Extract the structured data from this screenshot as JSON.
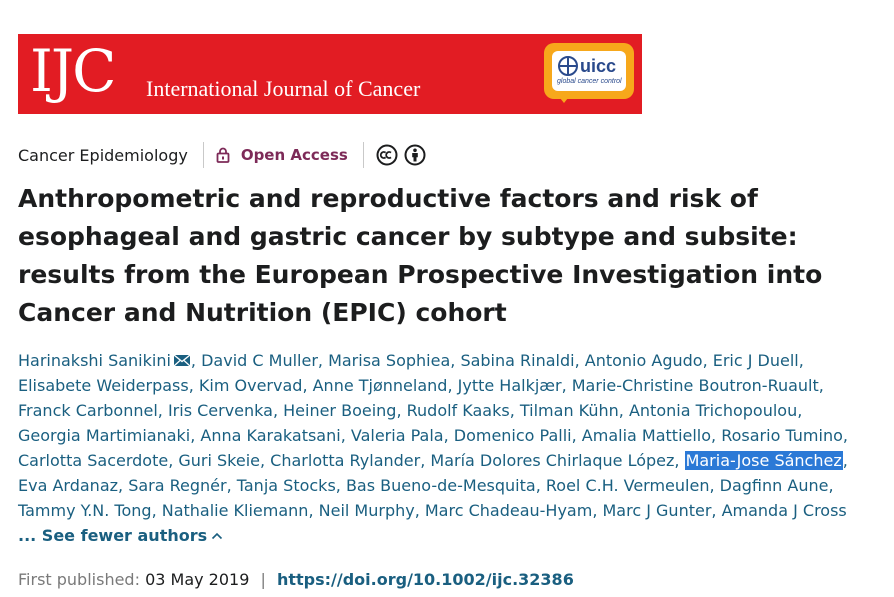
{
  "journal": {
    "logo_text": "IJC",
    "name": "International Journal of Cancer",
    "partner_logo": {
      "name": "uicc",
      "tagline": "global cancer control"
    },
    "colors": {
      "banner": "#e21c23",
      "badge": "#f7a81b"
    }
  },
  "meta": {
    "section": "Cancer Epidemiology",
    "access_icon": "lock-icon",
    "access_label": "Open Access",
    "license_icons": [
      "cc-icon",
      "cc-by-icon"
    ]
  },
  "article": {
    "title": "Anthropometric and reproductive factors and risk of esophageal and gastric cancer by subtype and subsite: results from the European Prospective Investigation into Cancer and Nutrition (EPIC) cohort"
  },
  "authors": [
    "Harinakshi Sanikini",
    "David C Muller",
    "Marisa Sophiea",
    "Sabina Rinaldi",
    "Antonio Agudo",
    "Eric J Duell",
    "Elisabete Weiderpass",
    "Kim Overvad",
    "Anne Tjønneland",
    "Jytte Halkjær",
    "Marie-Christine Boutron-Ruault",
    "Franck Carbonnel",
    "Iris Cervenka",
    "Heiner Boeing",
    "Rudolf Kaaks",
    "Tilman Kühn",
    "Antonia Trichopoulou",
    "Georgia Martimianaki",
    "Anna Karakatsani",
    "Valeria Pala",
    "Domenico Palli",
    "Amalia Mattiello",
    "Rosario Tumino",
    "Carlotta Sacerdote",
    "Guri Skeie",
    "Charlotta Rylander",
    "María Dolores Chirlaque López",
    "Maria-Jose Sánchez",
    "Eva Ardanaz",
    "Sara Regnér",
    "Tanja Stocks",
    "Bas Bueno-de-Mesquita",
    "Roel C.H. Vermeulen",
    "Dagfinn Aune",
    "Tammy Y.N. Tong",
    "Nathalie Kliemann",
    "Neil Murphy",
    "Marc Chadeau-Hyam",
    "Marc J Gunter",
    "Amanda J Cross"
  ],
  "authors_ui": {
    "corresponding_icon": "mail-icon",
    "highlighted": "Maria-Jose Sánchez",
    "see_fewer_label": "... See fewer authors",
    "see_fewer_icon": "chevron-up-icon"
  },
  "publication": {
    "first_published_label": "First published:",
    "date": "03 May 2019",
    "separator": "|",
    "doi": "https://doi.org/10.1002/ijc.32386"
  }
}
